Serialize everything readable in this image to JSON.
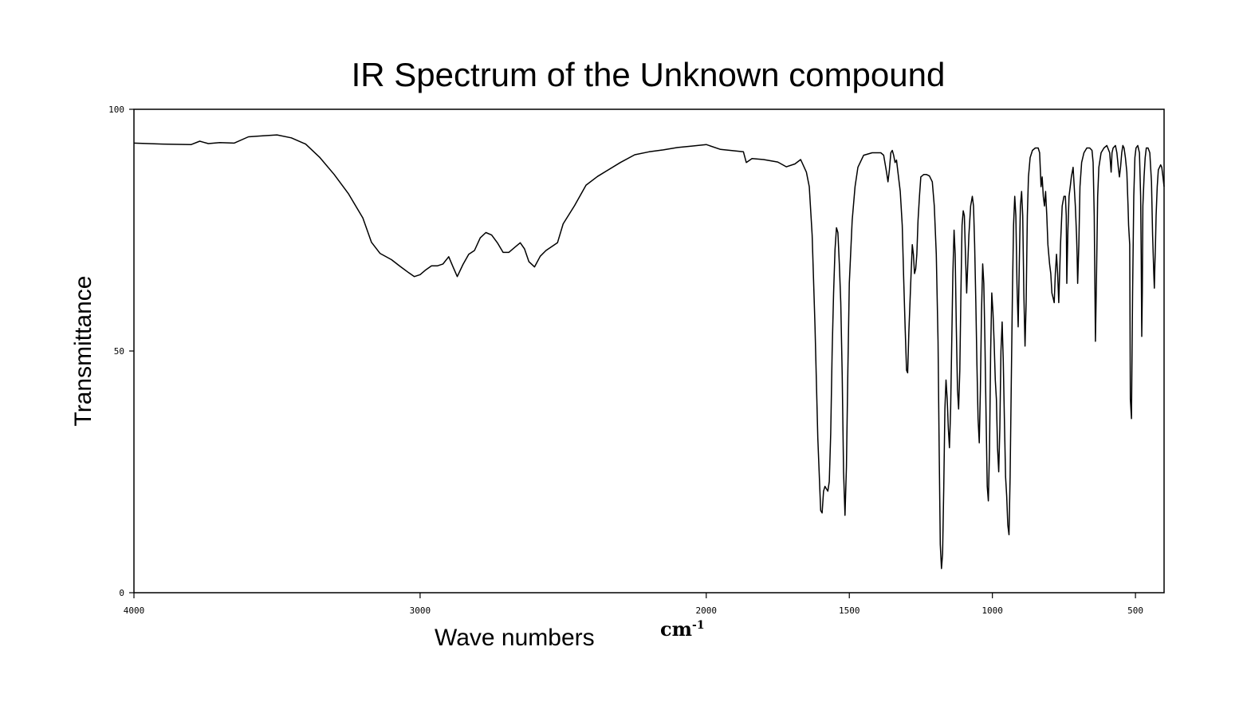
{
  "chart_data": {
    "type": "line",
    "title": "IR Spectrum of the Unknown compound",
    "xlabel": "Wave numbers",
    "xunit": "cm",
    "xunit_exp": "-1",
    "ylabel": "Transmittance",
    "xlim": [
      4000,
      400
    ],
    "ylim": [
      0,
      100
    ],
    "x_reversed": true,
    "xticks": [
      4000,
      3000,
      2000,
      1500,
      1000,
      500
    ],
    "xtick_labels": [
      "4000",
      "3000",
      "2000",
      "1500",
      "1000",
      "500"
    ],
    "yticks": [
      0,
      50,
      100
    ],
    "ytick_labels": [
      "0",
      "50",
      "100"
    ],
    "grid": false,
    "series": [
      {
        "color": "#000000",
        "points": [
          [
            4000,
            93
          ],
          [
            3900,
            92.8
          ],
          [
            3800,
            92.7
          ],
          [
            3770,
            93.4
          ],
          [
            3740,
            92.9
          ],
          [
            3700,
            93.1
          ],
          [
            3650,
            93
          ],
          [
            3600,
            94.3
          ],
          [
            3550,
            94.5
          ],
          [
            3500,
            94.7
          ],
          [
            3450,
            94.1
          ],
          [
            3400,
            92.8
          ],
          [
            3350,
            90
          ],
          [
            3300,
            86.5
          ],
          [
            3250,
            82.5
          ],
          [
            3200,
            77.5
          ],
          [
            3170,
            72.5
          ],
          [
            3140,
            70.2
          ],
          [
            3100,
            68.9
          ],
          [
            3070,
            67.5
          ],
          [
            3040,
            66.2
          ],
          [
            3020,
            65.4
          ],
          [
            3000,
            65.8
          ],
          [
            2980,
            66.8
          ],
          [
            2960,
            67.6
          ],
          [
            2940,
            67.6
          ],
          [
            2920,
            68
          ],
          [
            2900,
            69.5
          ],
          [
            2885,
            67.4
          ],
          [
            2870,
            65.4
          ],
          [
            2850,
            67.9
          ],
          [
            2830,
            70
          ],
          [
            2810,
            70.8
          ],
          [
            2790,
            73.4
          ],
          [
            2770,
            74.5
          ],
          [
            2750,
            74
          ],
          [
            2730,
            72.4
          ],
          [
            2710,
            70.4
          ],
          [
            2690,
            70.4
          ],
          [
            2670,
            71.4
          ],
          [
            2650,
            72.4
          ],
          [
            2635,
            71.1
          ],
          [
            2620,
            68.5
          ],
          [
            2600,
            67.4
          ],
          [
            2580,
            69.6
          ],
          [
            2560,
            70.8
          ],
          [
            2540,
            71.6
          ],
          [
            2520,
            72.4
          ],
          [
            2500,
            76.3
          ],
          [
            2460,
            80.1
          ],
          [
            2420,
            84.3
          ],
          [
            2380,
            86.1
          ],
          [
            2300,
            89
          ],
          [
            2250,
            90.6
          ],
          [
            2200,
            91.2
          ],
          [
            2150,
            91.6
          ],
          [
            2100,
            92.1
          ],
          [
            2050,
            92.4
          ],
          [
            2000,
            92.7
          ],
          [
            1950,
            91.7
          ],
          [
            1900,
            91.4
          ],
          [
            1870,
            91.2
          ],
          [
            1860,
            89
          ],
          [
            1840,
            89.8
          ],
          [
            1800,
            89.6
          ],
          [
            1750,
            89.1
          ],
          [
            1720,
            88.1
          ],
          [
            1690,
            88.7
          ],
          [
            1670,
            89.6
          ],
          [
            1650,
            87
          ],
          [
            1640,
            84
          ],
          [
            1630,
            74
          ],
          [
            1620,
            55
          ],
          [
            1610,
            32
          ],
          [
            1600,
            17
          ],
          [
            1595,
            16.5
          ],
          [
            1590,
            21
          ],
          [
            1585,
            22
          ],
          [
            1580,
            21.5
          ],
          [
            1575,
            21
          ],
          [
            1570,
            23
          ],
          [
            1565,
            33
          ],
          [
            1560,
            50
          ],
          [
            1555,
            62
          ],
          [
            1550,
            71
          ],
          [
            1545,
            75.5
          ],
          [
            1540,
            74.5
          ],
          [
            1535,
            68
          ],
          [
            1530,
            60
          ],
          [
            1525,
            45
          ],
          [
            1520,
            25
          ],
          [
            1515,
            16
          ],
          [
            1510,
            26
          ],
          [
            1505,
            46
          ],
          [
            1500,
            64
          ],
          [
            1490,
            77
          ],
          [
            1480,
            84
          ],
          [
            1470,
            88
          ],
          [
            1450,
            90.5
          ],
          [
            1420,
            91
          ],
          [
            1400,
            91
          ],
          [
            1390,
            91
          ],
          [
            1380,
            90.5
          ],
          [
            1370,
            87
          ],
          [
            1365,
            85
          ],
          [
            1360,
            87.5
          ],
          [
            1355,
            91
          ],
          [
            1350,
            91.5
          ],
          [
            1345,
            90.5
          ],
          [
            1340,
            89
          ],
          [
            1335,
            89.5
          ],
          [
            1330,
            87
          ],
          [
            1322,
            83
          ],
          [
            1315,
            76
          ],
          [
            1310,
            65
          ],
          [
            1305,
            55
          ],
          [
            1300,
            46
          ],
          [
            1296,
            45.5
          ],
          [
            1292,
            54
          ],
          [
            1288,
            60
          ],
          [
            1284,
            66
          ],
          [
            1280,
            72
          ],
          [
            1276,
            70
          ],
          [
            1272,
            66
          ],
          [
            1268,
            67
          ],
          [
            1264,
            70
          ],
          [
            1260,
            77
          ],
          [
            1255,
            82
          ],
          [
            1250,
            86
          ],
          [
            1240,
            86.5
          ],
          [
            1230,
            86.5
          ],
          [
            1220,
            86.2
          ],
          [
            1210,
            85
          ],
          [
            1203,
            80
          ],
          [
            1196,
            70
          ],
          [
            1190,
            52
          ],
          [
            1186,
            30
          ],
          [
            1182,
            10
          ],
          [
            1178,
            5
          ],
          [
            1174,
            8
          ],
          [
            1170,
            22
          ],
          [
            1166,
            38
          ],
          [
            1162,
            44
          ],
          [
            1158,
            40
          ],
          [
            1154,
            34
          ],
          [
            1150,
            30
          ],
          [
            1146,
            38
          ],
          [
            1142,
            52
          ],
          [
            1138,
            66
          ],
          [
            1134,
            75
          ],
          [
            1130,
            70
          ],
          [
            1126,
            55
          ],
          [
            1122,
            42
          ],
          [
            1118,
            38
          ],
          [
            1114,
            46
          ],
          [
            1110,
            62
          ],
          [
            1106,
            76
          ],
          [
            1102,
            79
          ],
          [
            1098,
            78
          ],
          [
            1094,
            70
          ],
          [
            1090,
            62
          ],
          [
            1086,
            68
          ],
          [
            1082,
            74
          ],
          [
            1076,
            80
          ],
          [
            1070,
            82
          ],
          [
            1066,
            80
          ],
          [
            1062,
            72
          ],
          [
            1058,
            60
          ],
          [
            1054,
            47
          ],
          [
            1050,
            36
          ],
          [
            1046,
            31
          ],
          [
            1042,
            42
          ],
          [
            1038,
            58
          ],
          [
            1034,
            68
          ],
          [
            1030,
            64
          ],
          [
            1026,
            52
          ],
          [
            1022,
            36
          ],
          [
            1018,
            22
          ],
          [
            1014,
            19
          ],
          [
            1010,
            30
          ],
          [
            1006,
            50
          ],
          [
            1002,
            62
          ],
          [
            998,
            58
          ],
          [
            994,
            52
          ],
          [
            990,
            44
          ],
          [
            986,
            40
          ],
          [
            982,
            30
          ],
          [
            978,
            25
          ],
          [
            974,
            34
          ],
          [
            970,
            50
          ],
          [
            966,
            56
          ],
          [
            962,
            48
          ],
          [
            958,
            36
          ],
          [
            954,
            24
          ],
          [
            950,
            20
          ],
          [
            946,
            14
          ],
          [
            942,
            12
          ],
          [
            938,
            24
          ],
          [
            934,
            44
          ],
          [
            930,
            62
          ],
          [
            926,
            76
          ],
          [
            922,
            82
          ],
          [
            918,
            78
          ],
          [
            914,
            64
          ],
          [
            910,
            55
          ],
          [
            906,
            68
          ],
          [
            902,
            80
          ],
          [
            898,
            83
          ],
          [
            894,
            78
          ],
          [
            890,
            62
          ],
          [
            886,
            51
          ],
          [
            882,
            60
          ],
          [
            878,
            78
          ],
          [
            874,
            86
          ],
          [
            868,
            90
          ],
          [
            860,
            91.5
          ],
          [
            850,
            92
          ],
          [
            840,
            92
          ],
          [
            835,
            91
          ],
          [
            830,
            84
          ],
          [
            826,
            86
          ],
          [
            822,
            82
          ],
          [
            818,
            80
          ],
          [
            814,
            83
          ],
          [
            810,
            78
          ],
          [
            806,
            72
          ],
          [
            800,
            68
          ],
          [
            796,
            66
          ],
          [
            792,
            62
          ],
          [
            788,
            61
          ],
          [
            784,
            60
          ],
          [
            780,
            66
          ],
          [
            776,
            70
          ],
          [
            772,
            66
          ],
          [
            768,
            60
          ],
          [
            762,
            72
          ],
          [
            756,
            80
          ],
          [
            750,
            82
          ],
          [
            745,
            82
          ],
          [
            742,
            78
          ],
          [
            740,
            64
          ],
          [
            736,
            75
          ],
          [
            732,
            82
          ],
          [
            728,
            84
          ],
          [
            724,
            86
          ],
          [
            718,
            88
          ],
          [
            714,
            84
          ],
          [
            710,
            80
          ],
          [
            706,
            74
          ],
          [
            704,
            70
          ],
          [
            702,
            64
          ],
          [
            698,
            72
          ],
          [
            694,
            84
          ],
          [
            688,
            89
          ],
          [
            680,
            91
          ],
          [
            670,
            92
          ],
          [
            660,
            92
          ],
          [
            652,
            91.5
          ],
          [
            648,
            89
          ],
          [
            644,
            78
          ],
          [
            640,
            52
          ],
          [
            636,
            66
          ],
          [
            632,
            82
          ],
          [
            628,
            88
          ],
          [
            620,
            91
          ],
          [
            610,
            92
          ],
          [
            600,
            92.5
          ],
          [
            590,
            91
          ],
          [
            585,
            87
          ],
          [
            582,
            91
          ],
          [
            578,
            92
          ],
          [
            570,
            92.5
          ],
          [
            565,
            91
          ],
          [
            560,
            88
          ],
          [
            556,
            86
          ],
          [
            552,
            88
          ],
          [
            548,
            91
          ],
          [
            544,
            92.5
          ],
          [
            540,
            92
          ],
          [
            535,
            90
          ],
          [
            530,
            87
          ],
          [
            526,
            80
          ],
          [
            524,
            76
          ],
          [
            520,
            72
          ],
          [
            518,
            40
          ],
          [
            514,
            36
          ],
          [
            510,
            62
          ],
          [
            506,
            82
          ],
          [
            502,
            90
          ],
          [
            498,
            92
          ],
          [
            492,
            92.5
          ],
          [
            486,
            91
          ],
          [
            482,
            82
          ],
          [
            480,
            70
          ],
          [
            478,
            53
          ],
          [
            476,
            62
          ],
          [
            474,
            80
          ],
          [
            470,
            86
          ],
          [
            466,
            90
          ],
          [
            462,
            92
          ],
          [
            456,
            92
          ],
          [
            450,
            91
          ],
          [
            444,
            85
          ],
          [
            440,
            74
          ],
          [
            436,
            66
          ],
          [
            434,
            63
          ],
          [
            432,
            68
          ],
          [
            430,
            72
          ],
          [
            428,
            78
          ],
          [
            424,
            84
          ],
          [
            420,
            87.5
          ],
          [
            416,
            88
          ],
          [
            412,
            88.5
          ],
          [
            408,
            88
          ],
          [
            404,
            86
          ],
          [
            400,
            84
          ]
        ]
      }
    ]
  }
}
